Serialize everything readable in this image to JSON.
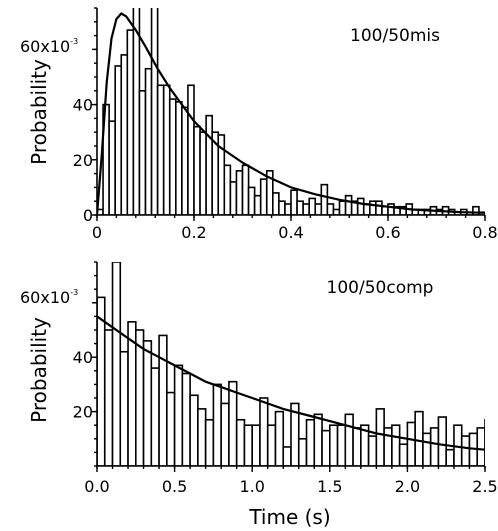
{
  "chart_data": [
    {
      "type": "bar",
      "annotation": "100/50mis",
      "ylabel": "Probability",
      "xlabel": "",
      "y_tick_top_label": "60x10",
      "y_tick_top_exponent": "-3",
      "x_ticks": [
        0,
        0.2,
        0.4,
        0.6,
        0.8
      ],
      "x_tick_labels": [
        "0",
        "0.2",
        "0.4",
        "0.6",
        "0.8"
      ],
      "y_ticks": [
        0,
        20,
        40,
        60
      ],
      "y_tick_labels": [
        "0",
        "20",
        "40",
        ""
      ],
      "xlim": [
        0,
        0.8
      ],
      "ylim": [
        0,
        0.075
      ],
      "bin_start": 0,
      "bin_width": 0.0125,
      "values": [
        0.002,
        0.04,
        0.034,
        0.054,
        0.058,
        0.067,
        0.09,
        0.045,
        0.053,
        0.088,
        0.047,
        0.047,
        0.042,
        0.041,
        0.039,
        0.047,
        0.032,
        0.03,
        0.036,
        0.03,
        0.029,
        0.018,
        0.012,
        0.016,
        0.018,
        0.01,
        0.007,
        0.013,
        0.016,
        0.008,
        0.005,
        0.004,
        0.009,
        0.005,
        0.004,
        0.006,
        0.004,
        0.011,
        0.004,
        0.002,
        0.005,
        0.007,
        0.005,
        0.006,
        0.004,
        0.005,
        0.005,
        0.003,
        0.004,
        0.003,
        0.003,
        0.004,
        0.002,
        0.002,
        0.002,
        0.003,
        0.002,
        0.003,
        0.002,
        0.001,
        0.002,
        0.001,
        0.003,
        0.001
      ],
      "fit": {
        "x": [
          0,
          0.01,
          0.02,
          0.03,
          0.04,
          0.05,
          0.06,
          0.08,
          0.1,
          0.125,
          0.15,
          0.175,
          0.2,
          0.25,
          0.3,
          0.35,
          0.4,
          0.45,
          0.5,
          0.55,
          0.6,
          0.65,
          0.7,
          0.75,
          0.8
        ],
        "y": [
          0.0,
          0.022,
          0.048,
          0.064,
          0.071,
          0.073,
          0.072,
          0.067,
          0.061,
          0.053,
          0.046,
          0.04,
          0.034,
          0.025,
          0.019,
          0.014,
          0.01,
          0.0075,
          0.0055,
          0.004,
          0.003,
          0.002,
          0.0015,
          0.001,
          0.0008
        ]
      }
    },
    {
      "type": "bar",
      "annotation": "100/50comp",
      "ylabel": "Probability",
      "xlabel": "Time (s)",
      "y_tick_top_label": "60x10",
      "y_tick_top_exponent": "-3",
      "x_ticks": [
        0,
        0.5,
        1.0,
        1.5,
        2.0,
        2.5
      ],
      "x_tick_labels": [
        "0.0",
        "0.5",
        "1.0",
        "1.5",
        "2.0",
        "2.5"
      ],
      "y_ticks": [
        20,
        40,
        60
      ],
      "y_tick_labels": [
        "20",
        "40",
        ""
      ],
      "xlim": [
        0,
        2.5
      ],
      "ylim": [
        0,
        0.075
      ],
      "bin_start": 0,
      "bin_width": 0.05,
      "values": [
        0.062,
        0.05,
        0.075,
        0.042,
        0.053,
        0.05,
        0.046,
        0.036,
        0.048,
        0.027,
        0.037,
        0.034,
        0.026,
        0.021,
        0.017,
        0.03,
        0.023,
        0.031,
        0.017,
        0.015,
        0.015,
        0.025,
        0.015,
        0.02,
        0.007,
        0.023,
        0.01,
        0.017,
        0.019,
        0.013,
        0.015,
        0.015,
        0.019,
        0.014,
        0.015,
        0.011,
        0.021,
        0.014,
        0.015,
        0.008,
        0.016,
        0.02,
        0.012,
        0.014,
        0.018,
        0.006,
        0.015,
        0.011,
        0.012,
        0.014,
        0.017,
        0.016,
        0.018,
        0.015,
        0.02,
        0.012,
        0.013,
        0.008,
        0.006,
        0.005,
        0.008,
        0.005,
        0.004,
        0.006,
        0.007,
        0.005,
        0.004
      ],
      "fit": {
        "x": [
          0,
          0.1,
          0.2,
          0.3,
          0.4,
          0.5,
          0.6,
          0.7,
          0.8,
          0.9,
          1.0,
          1.2,
          1.4,
          1.6,
          1.8,
          2.0,
          2.2,
          2.4,
          2.5
        ],
        "y": [
          0.055,
          0.051,
          0.047,
          0.043,
          0.04,
          0.037,
          0.034,
          0.031,
          0.029,
          0.027,
          0.025,
          0.021,
          0.018,
          0.015,
          0.012,
          0.01,
          0.008,
          0.0065,
          0.006
        ]
      }
    }
  ]
}
